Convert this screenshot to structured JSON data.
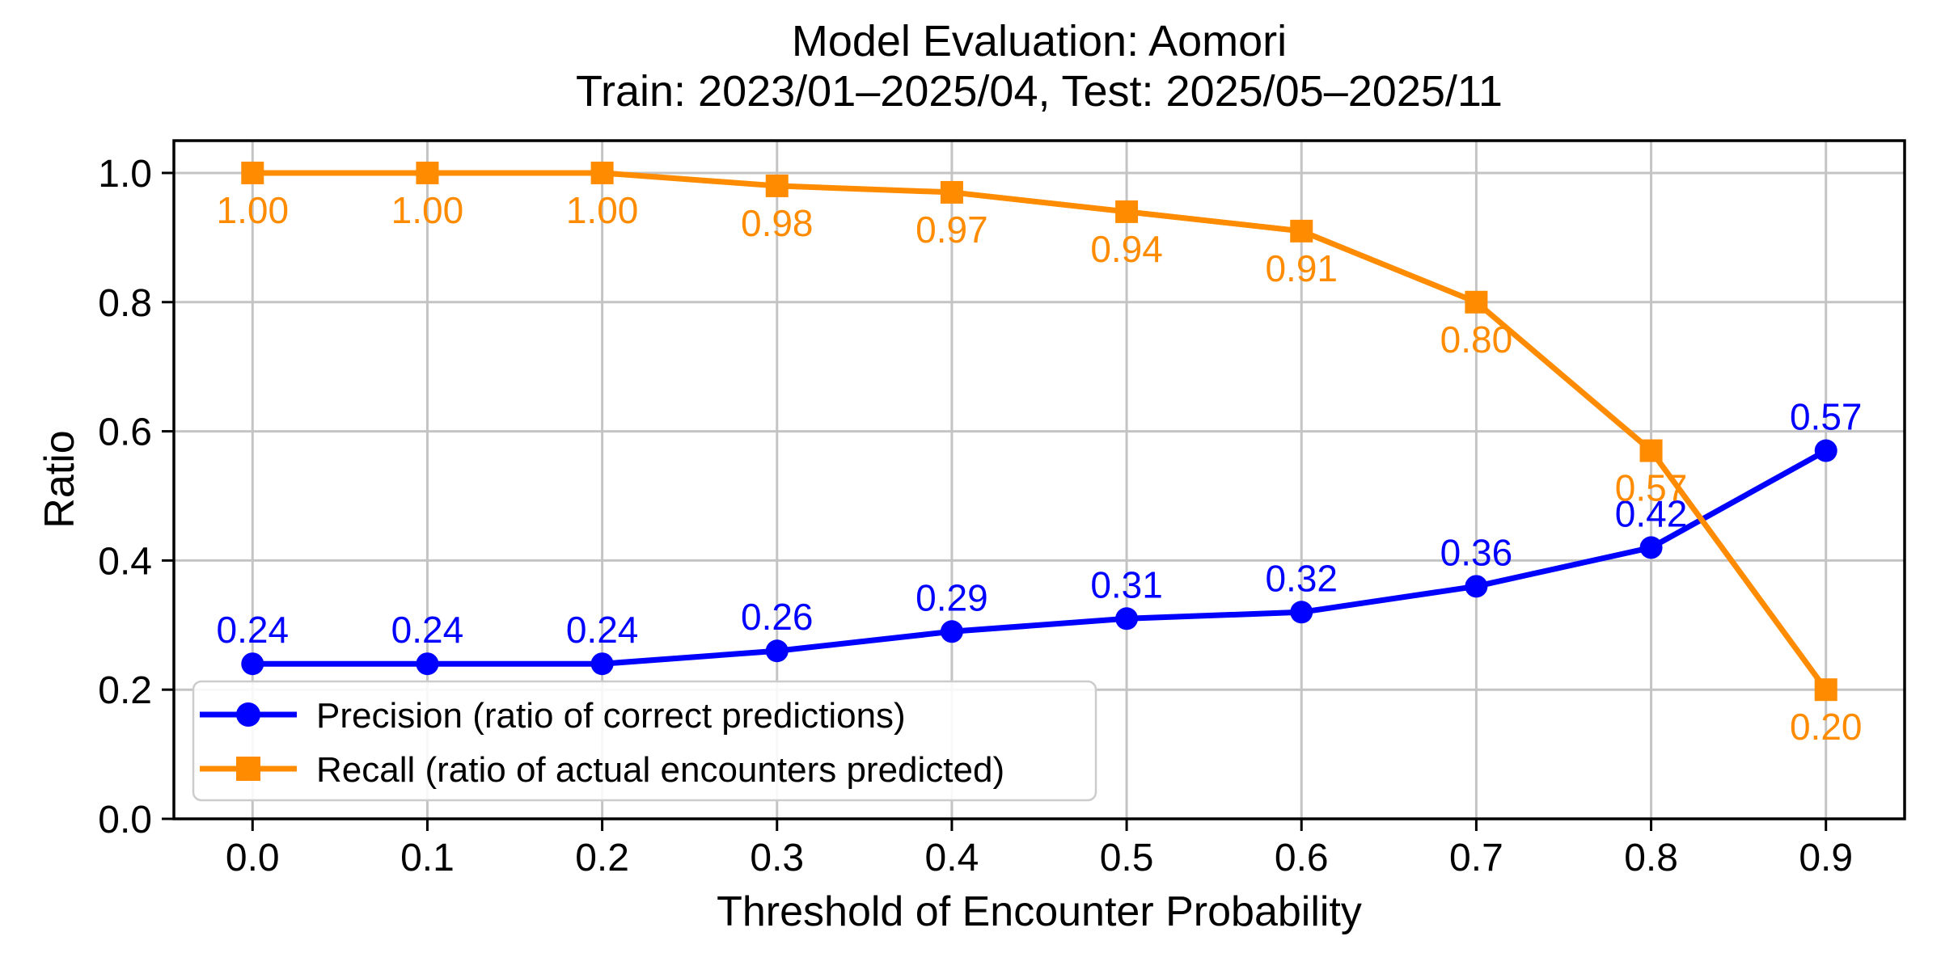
{
  "chart_data": {
    "type": "line",
    "title": "Model Evaluation: Aomori",
    "subtitle": "Train: 2023/01–2025/04, Test: 2025/05–2025/11",
    "xlabel": "Threshold of Encounter Probability",
    "ylabel": "Ratio",
    "x": [
      0.0,
      0.1,
      0.2,
      0.3,
      0.4,
      0.5,
      0.6,
      0.7,
      0.8,
      0.9
    ],
    "x_tick_labels": [
      "0.0",
      "0.1",
      "0.2",
      "0.3",
      "0.4",
      "0.5",
      "0.6",
      "0.7",
      "0.8",
      "0.9"
    ],
    "y_ticks": [
      0.0,
      0.2,
      0.4,
      0.6,
      0.8,
      1.0
    ],
    "y_tick_labels": [
      "0.0",
      "0.2",
      "0.4",
      "0.6",
      "0.8",
      "1.0"
    ],
    "xlim": [
      -0.045,
      0.945
    ],
    "ylim": [
      0,
      1.05
    ],
    "grid": true,
    "legend_position": "lower-left",
    "colors": {
      "precision": "#0000ff",
      "recall": "#ff8c00",
      "grid": "#c4c4c4",
      "spine": "#000000",
      "legend_border": "#cccccc",
      "background": "#ffffff"
    },
    "series": [
      {
        "key": "precision",
        "name": "Precision (ratio of correct predictions)",
        "color": "#0000ff",
        "marker": "circle",
        "label_side": "above",
        "values": [
          0.24,
          0.24,
          0.24,
          0.26,
          0.29,
          0.31,
          0.32,
          0.36,
          0.42,
          0.57
        ],
        "labels": [
          "0.24",
          "0.24",
          "0.24",
          "0.26",
          "0.29",
          "0.31",
          "0.32",
          "0.36",
          "0.42",
          "0.57"
        ]
      },
      {
        "key": "recall",
        "name": "Recall (ratio of actual encounters predicted)",
        "color": "#ff8c00",
        "marker": "square",
        "label_side": "below",
        "values": [
          1.0,
          1.0,
          1.0,
          0.98,
          0.97,
          0.94,
          0.91,
          0.8,
          0.57,
          0.2
        ],
        "labels": [
          "1.00",
          "1.00",
          "1.00",
          "0.98",
          "0.97",
          "0.94",
          "0.91",
          "0.80",
          "0.57",
          "0.20"
        ]
      }
    ]
  }
}
